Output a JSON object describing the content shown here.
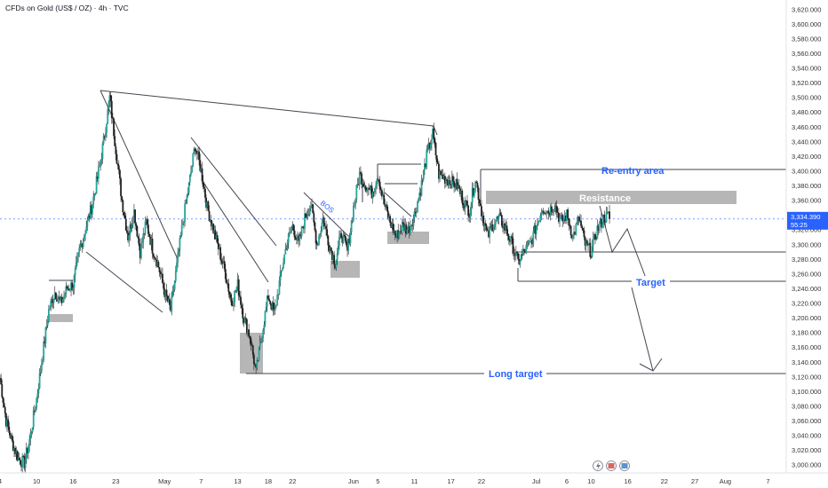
{
  "chart_data": {
    "type": "candlestick",
    "title": "CFDs on Gold (US$ / OZ) · 4h · TVC",
    "y_axis": {
      "ticks": [
        "3,620.000",
        "3,600.000",
        "3,580.000",
        "3,560.000",
        "3,540.000",
        "3,520.000",
        "3,500.000",
        "3,480.000",
        "3,460.000",
        "3,440.000",
        "3,420.000",
        "3,400.000",
        "3,380.000",
        "3,360.000",
        "3,340.000",
        "3,320.000",
        "3,300.000",
        "3,280.000",
        "3,260.000",
        "3,240.000",
        "3,220.000",
        "3,200.000",
        "3,180.000",
        "3,160.000",
        "3,140.000",
        "3,120.000",
        "3,100.000",
        "3,080.000",
        "3,060.000",
        "3,040.000",
        "3,020.000",
        "3,000.000"
      ],
      "range": [
        2990,
        3630
      ],
      "position": "right"
    },
    "x_axis": {
      "ticks": [
        "4",
        "10",
        "16",
        "23",
        "May",
        "7",
        "13",
        "18",
        "22",
        "Jun",
        "5",
        "11",
        "17",
        "22",
        "Jul",
        "6",
        "10",
        "16",
        "22",
        "27",
        "Aug",
        "7"
      ],
      "tick_days": [
        4,
        10,
        16,
        23,
        31,
        37,
        43,
        48,
        52,
        62,
        66,
        72,
        78,
        83,
        92,
        97,
        101,
        107,
        113,
        118,
        123,
        130
      ],
      "range_days": [
        4,
        133
      ]
    },
    "current_price": {
      "value": "3,334.390",
      "countdown": "55:25",
      "price": 3334.39
    },
    "price_path": [
      [
        4,
        3118
      ],
      [
        5,
        3060
      ],
      [
        6,
        3030
      ],
      [
        7,
        3008
      ],
      [
        8,
        3002
      ],
      [
        9,
        3040
      ],
      [
        10,
        3090
      ],
      [
        11,
        3150
      ],
      [
        12,
        3210
      ],
      [
        13,
        3235
      ],
      [
        14,
        3220
      ],
      [
        15,
        3240
      ],
      [
        16,
        3245
      ],
      [
        17,
        3290
      ],
      [
        18,
        3320
      ],
      [
        19,
        3350
      ],
      [
        20,
        3390
      ],
      [
        21,
        3440
      ],
      [
        22,
        3500
      ],
      [
        23,
        3430
      ],
      [
        24,
        3360
      ],
      [
        25,
        3310
      ],
      [
        26,
        3345
      ],
      [
        27,
        3290
      ],
      [
        28,
        3330
      ],
      [
        29,
        3295
      ],
      [
        30,
        3270
      ],
      [
        31,
        3235
      ],
      [
        32,
        3210
      ],
      [
        33,
        3270
      ],
      [
        34,
        3330
      ],
      [
        35,
        3380
      ],
      [
        36,
        3435
      ],
      [
        37,
        3400
      ],
      [
        38,
        3350
      ],
      [
        39,
        3320
      ],
      [
        40,
        3290
      ],
      [
        41,
        3260
      ],
      [
        42,
        3220
      ],
      [
        43,
        3245
      ],
      [
        44,
        3200
      ],
      [
        45,
        3175
      ],
      [
        46,
        3125
      ],
      [
        47,
        3180
      ],
      [
        48,
        3230
      ],
      [
        49,
        3205
      ],
      [
        50,
        3255
      ],
      [
        51,
        3300
      ],
      [
        52,
        3325
      ],
      [
        53,
        3300
      ],
      [
        54,
        3335
      ],
      [
        55,
        3355
      ],
      [
        56,
        3300
      ],
      [
        57,
        3335
      ],
      [
        58,
        3300
      ],
      [
        59,
        3275
      ],
      [
        60,
        3315
      ],
      [
        61,
        3290
      ],
      [
        62,
        3350
      ],
      [
        63,
        3395
      ],
      [
        64,
        3380
      ],
      [
        65,
        3370
      ],
      [
        66,
        3395
      ],
      [
        67,
        3355
      ],
      [
        68,
        3330
      ],
      [
        69,
        3310
      ],
      [
        70,
        3325
      ],
      [
        71,
        3320
      ],
      [
        72,
        3340
      ],
      [
        73,
        3375
      ],
      [
        74,
        3420
      ],
      [
        75,
        3450
      ],
      [
        76,
        3395
      ],
      [
        77,
        3390
      ],
      [
        78,
        3385
      ],
      [
        79,
        3380
      ],
      [
        80,
        3360
      ],
      [
        81,
        3345
      ],
      [
        82,
        3390
      ],
      [
        83,
        3345
      ],
      [
        84,
        3310
      ],
      [
        85,
        3330
      ],
      [
        86,
        3335
      ],
      [
        87,
        3320
      ],
      [
        88,
        3300
      ],
      [
        89,
        3275
      ],
      [
        90,
        3290
      ],
      [
        91,
        3300
      ],
      [
        92,
        3325
      ],
      [
        93,
        3350
      ],
      [
        94,
        3345
      ],
      [
        95,
        3355
      ],
      [
        96,
        3330
      ],
      [
        97,
        3340
      ],
      [
        98,
        3310
      ],
      [
        99,
        3335
      ],
      [
        100,
        3300
      ],
      [
        101,
        3290
      ],
      [
        102,
        3320
      ],
      [
        103,
        3335
      ],
      [
        104,
        3340
      ]
    ],
    "annotations": [
      {
        "text": "Re-entry area",
        "price": 3393
      },
      {
        "text": "Resistance",
        "price": 3358
      },
      {
        "text": "Target",
        "price": 3242
      },
      {
        "text": "Long target",
        "price": 3121
      },
      {
        "text": "BOS"
      }
    ]
  }
}
